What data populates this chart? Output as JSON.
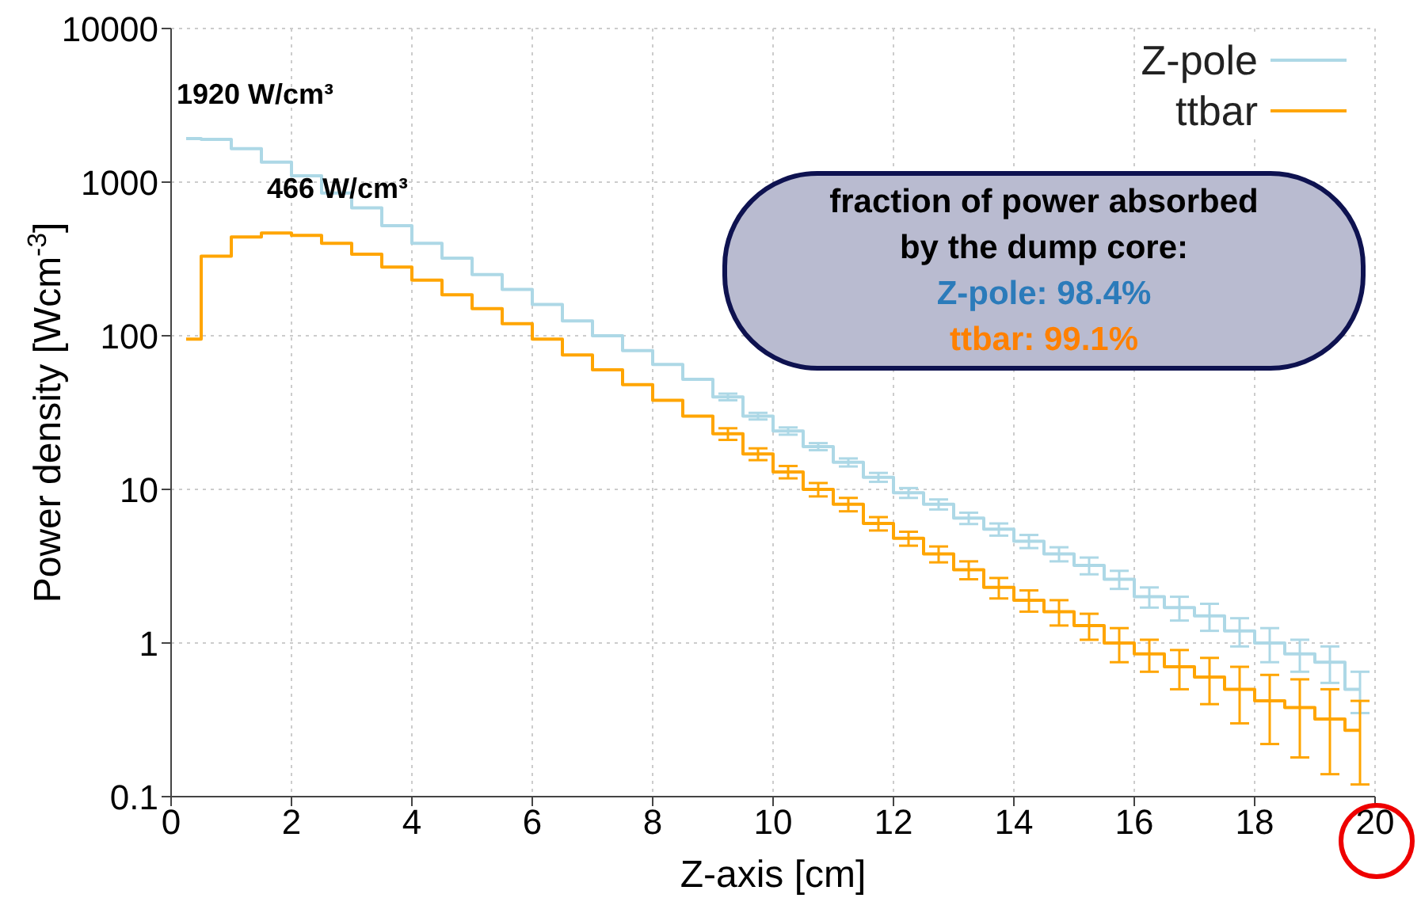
{
  "chart_data": {
    "type": "step",
    "xlabel": "Z-axis [cm]",
    "ylabel": "Power density [Wcm$^{-3}$]",
    "x": [
      0.25,
      0.75,
      1.25,
      1.75,
      2.25,
      2.75,
      3.25,
      3.75,
      4.25,
      4.75,
      5.25,
      5.75,
      6.25,
      6.75,
      7.25,
      7.75,
      8.25,
      8.75,
      9.25,
      9.75,
      10.25,
      10.75,
      11.25,
      11.75,
      12.25,
      12.75,
      13.25,
      13.75,
      14.25,
      14.75,
      15.25,
      15.75,
      16.25,
      16.75,
      17.25,
      17.75,
      18.25,
      18.75,
      19.25,
      19.75
    ],
    "series": [
      {
        "name": "Z-pole",
        "color": "#add8e6",
        "values": [
          1920,
          1900,
          1650,
          1350,
          1100,
          850,
          680,
          520,
          400,
          320,
          250,
          200,
          160,
          125,
          100,
          80,
          65,
          52,
          40,
          30,
          24,
          19,
          15,
          12,
          9.5,
          8,
          6.5,
          5.5,
          4.6,
          3.8,
          3.2,
          2.6,
          2.0,
          1.7,
          1.5,
          1.2,
          1.0,
          0.85,
          0.75,
          0.5
        ],
        "errors": [
          null,
          null,
          null,
          null,
          null,
          null,
          null,
          null,
          null,
          null,
          null,
          null,
          null,
          null,
          null,
          null,
          null,
          null,
          2,
          1.5,
          1.3,
          1,
          0.9,
          0.8,
          0.7,
          0.6,
          0.55,
          0.5,
          0.45,
          0.4,
          0.4,
          0.35,
          0.3,
          0.3,
          0.3,
          0.25,
          0.25,
          0.2,
          0.2,
          0.15
        ]
      },
      {
        "name": "ttbar",
        "color": "#ffa500",
        "values": [
          95,
          330,
          440,
          466,
          450,
          400,
          340,
          280,
          230,
          185,
          150,
          120,
          95,
          75,
          60,
          48,
          38,
          30,
          23,
          17,
          13,
          10,
          8,
          6,
          4.8,
          3.8,
          3.0,
          2.3,
          1.9,
          1.6,
          1.3,
          1.0,
          0.85,
          0.7,
          0.6,
          0.5,
          0.42,
          0.38,
          0.32,
          0.27
        ],
        "errors": [
          null,
          null,
          null,
          null,
          null,
          null,
          null,
          null,
          null,
          null,
          null,
          null,
          null,
          null,
          null,
          null,
          null,
          null,
          2,
          1.5,
          1.2,
          1,
          0.8,
          0.6,
          0.5,
          0.45,
          0.4,
          0.35,
          0.3,
          0.3,
          0.25,
          0.25,
          0.2,
          0.2,
          0.2,
          0.2,
          0.2,
          0.2,
          0.18,
          0.15
        ]
      }
    ],
    "xlim": [
      0,
      20
    ],
    "xticks": [
      0,
      2,
      4,
      6,
      8,
      10,
      12,
      14,
      16,
      18,
      20
    ],
    "ylim": [
      0.1,
      10000
    ],
    "yticks": [
      0.1,
      1,
      10,
      100,
      1000,
      10000
    ],
    "log": "y",
    "grid": true,
    "legend": "top right",
    "annotations": [
      {
        "text": "1920 W/cm³",
        "x": 0.25,
        "y": 1920
      },
      {
        "text": "466 W/cm³",
        "x": 1.75,
        "y": 466
      },
      "fraction of power absorbed by the dump core:",
      "Z-pole: 98.4%",
      "ttbar: 99.1%"
    ]
  }
}
